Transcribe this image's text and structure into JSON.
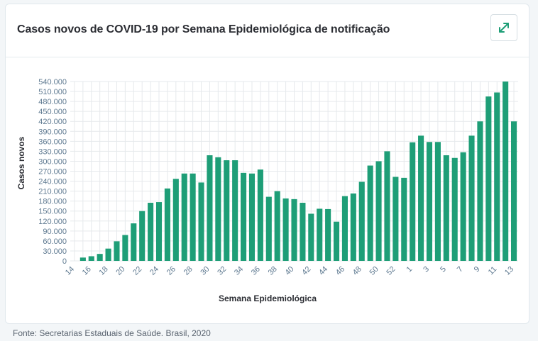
{
  "card": {
    "title": "Casos novos de COVID-19 por Semana Epidemiológica de notificação"
  },
  "footer": {
    "source": "Fonte: Secretarias Estaduais de Saúde. Brasil, 2020"
  },
  "icons": {
    "expand": "expand-arrows-icon"
  },
  "colors": {
    "bar": "#1e9e77",
    "grid": "#e6e9ec",
    "tick": "#5f7a91",
    "accent": "#1e9e77"
  },
  "chart_data": {
    "type": "bar",
    "xlabel": "Semana Epidemiológica",
    "ylabel": "Casos novos",
    "ylim": [
      0,
      540000
    ],
    "yticks": [
      0,
      30000,
      60000,
      90000,
      120000,
      150000,
      180000,
      210000,
      240000,
      270000,
      300000,
      330000,
      360000,
      390000,
      420000,
      450000,
      480000,
      510000,
      540000
    ],
    "ytick_labels": [
      "0",
      "30.000",
      "60.000",
      "90.000",
      "120.000",
      "150.000",
      "180.000",
      "210.000",
      "240.000",
      "270.000",
      "300.000",
      "330.000",
      "360.000",
      "390.000",
      "420.000",
      "450.000",
      "480.000",
      "510.000",
      "540.000"
    ],
    "grid": true,
    "categories": [
      "14",
      "15",
      "16",
      "17",
      "18",
      "19",
      "20",
      "21",
      "22",
      "23",
      "24",
      "25",
      "26",
      "27",
      "28",
      "29",
      "30",
      "31",
      "32",
      "33",
      "34",
      "35",
      "36",
      "37",
      "38",
      "39",
      "40",
      "41",
      "42",
      "43",
      "44",
      "45",
      "46",
      "47",
      "48",
      "49",
      "50",
      "51",
      "52",
      "53",
      "1",
      "2",
      "3",
      "4",
      "5",
      "6",
      "7",
      "8",
      "9",
      "10",
      "11",
      "12",
      "13"
    ],
    "xtick_labels": [
      "14",
      "16",
      "18",
      "20",
      "22",
      "24",
      "26",
      "28",
      "30",
      "32",
      "34",
      "36",
      "38",
      "40",
      "42",
      "44",
      "46",
      "48",
      "50",
      "52",
      "1",
      "3",
      "5",
      "7",
      "9",
      "11",
      "13"
    ],
    "values": [
      0,
      10000,
      14000,
      21000,
      37000,
      59000,
      78000,
      113000,
      150000,
      175000,
      177000,
      218000,
      247000,
      263000,
      263000,
      236000,
      318000,
      312000,
      303000,
      303000,
      265000,
      263000,
      275000,
      193000,
      210000,
      188000,
      186000,
      175000,
      142000,
      157000,
      156000,
      118000,
      195000,
      203000,
      238000,
      287000,
      300000,
      330000,
      253000,
      250000,
      357000,
      377000,
      358000,
      358000,
      318000,
      310000,
      327000,
      377000,
      420000,
      495000,
      507000,
      540000,
      420000
    ]
  }
}
